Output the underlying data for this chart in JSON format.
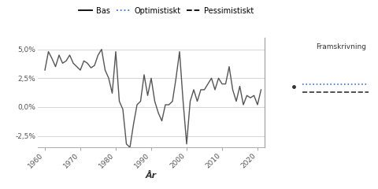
{
  "title": "",
  "xlabel": "År",
  "ylabel": "",
  "legend_entries": [
    "Bas",
    "Optimistiskt",
    "Pessimistiskt"
  ],
  "legend_styles": [
    "solid",
    "dotted",
    "dashed"
  ],
  "legend_colors": [
    "#000000",
    "#4472c4",
    "#000000"
  ],
  "framskrivning_label": "Framskrivning",
  "ylim": [
    -3.5,
    6.0
  ],
  "yticks": [
    -2.5,
    0.0,
    2.5,
    5.0
  ],
  "ytick_labels": [
    "-2,5%",
    "0,0%",
    "2,5%",
    "5,0%"
  ],
  "xticks": [
    1960,
    1970,
    1980,
    1990,
    2000,
    2010,
    2020
  ],
  "line_color": "#555555",
  "grid_color": "#d0d0d0",
  "background_color": "#ffffff",
  "historical_data": {
    "years": [
      1960,
      1961,
      1962,
      1963,
      1964,
      1965,
      1966,
      1967,
      1968,
      1969,
      1970,
      1971,
      1972,
      1973,
      1974,
      1975,
      1976,
      1977,
      1978,
      1979,
      1980,
      1981,
      1982,
      1983,
      1984,
      1985,
      1986,
      1987,
      1988,
      1989,
      1990,
      1991,
      1992,
      1993,
      1994,
      1995,
      1996,
      1997,
      1998,
      1999,
      2000,
      2001,
      2002,
      2003,
      2004,
      2005,
      2006,
      2007,
      2008,
      2009,
      2010,
      2011,
      2012,
      2013,
      2014,
      2015,
      2016,
      2017,
      2018,
      2019,
      2020,
      2021
    ],
    "values": [
      3.2,
      4.8,
      4.2,
      3.5,
      4.5,
      3.8,
      4.0,
      4.5,
      3.8,
      3.5,
      3.2,
      4.0,
      3.8,
      3.4,
      3.6,
      4.5,
      5.0,
      3.2,
      2.5,
      1.2,
      4.8,
      0.5,
      -0.2,
      -3.2,
      -3.5,
      -1.5,
      0.2,
      0.5,
      2.8,
      1.0,
      2.5,
      0.5,
      -0.5,
      -1.2,
      0.2,
      0.2,
      0.5,
      2.5,
      4.8,
      0.5,
      -3.2,
      0.5,
      1.5,
      0.5,
      1.5,
      1.5,
      2.0,
      2.5,
      1.5,
      2.5,
      2.0,
      2.0,
      3.5,
      1.5,
      0.5,
      1.8,
      0.2,
      1.0,
      0.8,
      1.0,
      0.2,
      1.5
    ]
  },
  "dot_color": "#333333",
  "line_width": 1.0,
  "optimistic_color": "#4472c4",
  "pessimistic_color": "#333333",
  "opt_line_val": 2.0,
  "pes_line_val": 1.3,
  "dot_y": 1.8
}
